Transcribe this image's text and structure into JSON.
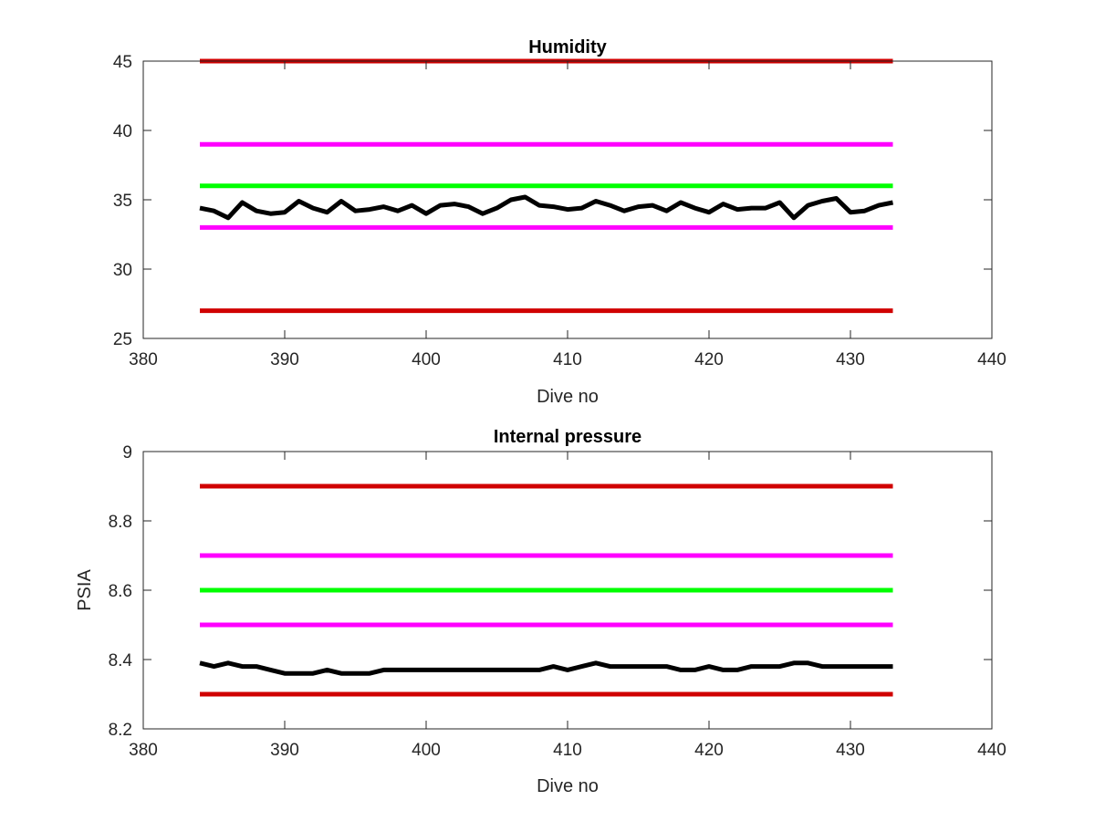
{
  "chart_data": [
    {
      "type": "line",
      "title": "Humidity",
      "xlabel": "Dive no",
      "ylabel": "",
      "xlim": [
        380,
        440
      ],
      "ylim": [
        25,
        45
      ],
      "xticks": [
        380,
        390,
        400,
        410,
        420,
        430,
        440
      ],
      "yticks": [
        25,
        30,
        35,
        40,
        45
      ],
      "grid": false,
      "legend": "none",
      "series": [
        {
          "color": "#d00000",
          "x": [
            384,
            433
          ],
          "values": [
            45,
            45
          ]
        },
        {
          "color": "#ff00ff",
          "x": [
            384,
            433
          ],
          "values": [
            39,
            39
          ]
        },
        {
          "color": "#00ff00",
          "x": [
            384,
            433
          ],
          "values": [
            36,
            36
          ]
        },
        {
          "color": "#ff00ff",
          "x": [
            384,
            433
          ],
          "values": [
            33,
            33
          ]
        },
        {
          "color": "#d00000",
          "x": [
            384,
            433
          ],
          "values": [
            27,
            27
          ]
        },
        {
          "color": "#000000",
          "x": [
            384,
            385,
            386,
            387,
            388,
            389,
            390,
            391,
            392,
            393,
            394,
            395,
            396,
            397,
            398,
            399,
            400,
            401,
            402,
            403,
            404,
            405,
            406,
            407,
            408,
            409,
            410,
            411,
            412,
            413,
            414,
            415,
            416,
            417,
            418,
            419,
            420,
            421,
            422,
            423,
            424,
            425,
            426,
            427,
            428,
            429,
            430,
            431,
            432,
            433
          ],
          "values": [
            34.4,
            34.2,
            33.7,
            34.8,
            34.2,
            34.0,
            34.1,
            34.9,
            34.4,
            34.1,
            34.9,
            34.2,
            34.3,
            34.5,
            34.2,
            34.6,
            34.0,
            34.6,
            34.7,
            34.5,
            34.0,
            34.4,
            35.0,
            35.2,
            34.6,
            34.5,
            34.3,
            34.4,
            34.9,
            34.6,
            34.2,
            34.5,
            34.6,
            34.2,
            34.8,
            34.4,
            34.1,
            34.7,
            34.3,
            34.4,
            34.4,
            34.8,
            33.7,
            34.6,
            34.9,
            35.1,
            34.1,
            34.2,
            34.6,
            34.8
          ]
        }
      ]
    },
    {
      "type": "line",
      "title": "Internal pressure",
      "xlabel": "Dive no",
      "ylabel": "PSIA",
      "xlim": [
        380,
        440
      ],
      "ylim": [
        8.2,
        9
      ],
      "xticks": [
        380,
        390,
        400,
        410,
        420,
        430,
        440
      ],
      "yticks": [
        8.2,
        8.4,
        8.6,
        8.8,
        9
      ],
      "grid": false,
      "legend": "none",
      "series": [
        {
          "color": "#d00000",
          "x": [
            384,
            433
          ],
          "values": [
            8.9,
            8.9
          ]
        },
        {
          "color": "#ff00ff",
          "x": [
            384,
            433
          ],
          "values": [
            8.7,
            8.7
          ]
        },
        {
          "color": "#00ff00",
          "x": [
            384,
            433
          ],
          "values": [
            8.6,
            8.6
          ]
        },
        {
          "color": "#ff00ff",
          "x": [
            384,
            433
          ],
          "values": [
            8.5,
            8.5
          ]
        },
        {
          "color": "#d00000",
          "x": [
            384,
            433
          ],
          "values": [
            8.3,
            8.3
          ]
        },
        {
          "color": "#000000",
          "x": [
            384,
            385,
            386,
            387,
            388,
            389,
            390,
            391,
            392,
            393,
            394,
            395,
            396,
            397,
            398,
            399,
            400,
            401,
            402,
            403,
            404,
            405,
            406,
            407,
            408,
            409,
            410,
            411,
            412,
            413,
            414,
            415,
            416,
            417,
            418,
            419,
            420,
            421,
            422,
            423,
            424,
            425,
            426,
            427,
            428,
            429,
            430,
            431,
            432,
            433
          ],
          "values": [
            8.39,
            8.38,
            8.39,
            8.38,
            8.38,
            8.37,
            8.36,
            8.36,
            8.36,
            8.37,
            8.36,
            8.36,
            8.36,
            8.37,
            8.37,
            8.37,
            8.37,
            8.37,
            8.37,
            8.37,
            8.37,
            8.37,
            8.37,
            8.37,
            8.37,
            8.38,
            8.37,
            8.38,
            8.39,
            8.38,
            8.38,
            8.38,
            8.38,
            8.38,
            8.37,
            8.37,
            8.38,
            8.37,
            8.37,
            8.38,
            8.38,
            8.38,
            8.39,
            8.39,
            8.38,
            8.38,
            8.38,
            8.38,
            8.38,
            8.38
          ]
        }
      ]
    }
  ]
}
